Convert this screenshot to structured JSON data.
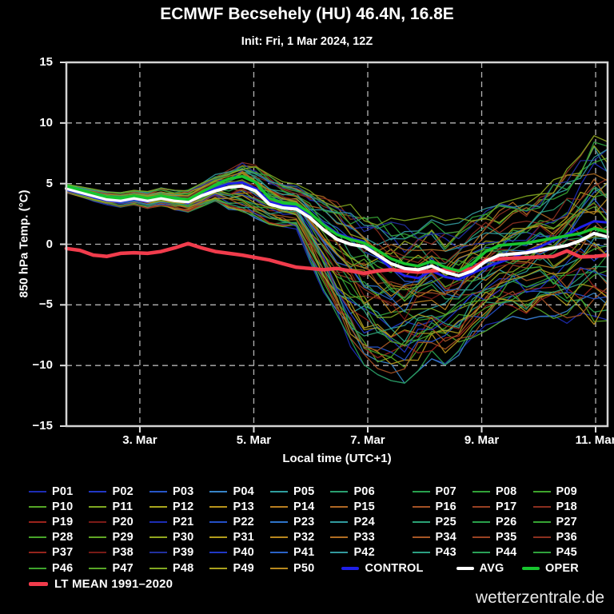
{
  "title": "ECMWF Becsehely (HU) 46.4N, 16.8E",
  "subtitle": "Init: Fri, 1 Mar 2024, 12Z",
  "watermark": "wetterzentrale.de",
  "colors": {
    "background": "#000000",
    "frame": "#d4d4d4",
    "grid": "#b4b4b4",
    "tick": "#e0e0e0",
    "text": "#ffffff"
  },
  "axes": {
    "y": {
      "label": "850 hPa Temp. (°C)",
      "ticks": [
        "15",
        "10",
        "5",
        "0",
        "−5",
        "−10",
        "−15"
      ],
      "values": [
        15,
        10,
        5,
        0,
        -5,
        -10,
        -15
      ],
      "gridline_values": [
        10,
        5,
        0,
        -5,
        -10
      ]
    },
    "x": {
      "label": "Local time (UTC+1)",
      "ticks": [
        "3. Mar",
        "5. Mar",
        "7. Mar",
        "9. Mar",
        "11. Mar"
      ]
    }
  },
  "chart_data": {
    "type": "line",
    "x_unit": "day of March 2024, local time (UTC+1)",
    "x_start": 1.71,
    "x_end": 11.21,
    "n_points": 41,
    "x_tick_days": [
      3,
      5,
      7,
      9,
      11
    ],
    "ylim": [
      -15,
      15
    ],
    "grid": true,
    "series": [
      {
        "name": "AVG",
        "color": "#ffffff",
        "values": [
          4.6,
          4.3,
          4.0,
          3.7,
          3.6,
          3.8,
          3.6,
          3.8,
          3.6,
          3.5,
          4.0,
          4.4,
          4.7,
          4.8,
          4.4,
          3.3,
          3.0,
          2.9,
          2.2,
          1.2,
          0.4,
          0.0,
          -0.2,
          -0.9,
          -1.6,
          -2.0,
          -2.1,
          -1.8,
          -2.3,
          -2.6,
          -2.2,
          -1.4,
          -0.9,
          -0.8,
          -0.7,
          -0.5,
          -0.3,
          -0.1,
          0.3,
          0.9,
          0.6
        ]
      },
      {
        "name": "OPER",
        "color": "#17c52f",
        "values": [
          4.8,
          4.5,
          4.2,
          3.9,
          3.8,
          4.0,
          3.8,
          4.0,
          3.8,
          3.7,
          4.3,
          4.9,
          5.4,
          5.6,
          5.1,
          3.8,
          3.4,
          3.3,
          2.6,
          1.6,
          0.8,
          0.4,
          0.1,
          -0.5,
          -1.2,
          -1.6,
          -1.8,
          -1.4,
          -1.9,
          -2.2,
          -1.6,
          -0.6,
          -0.1,
          0.0,
          0.1,
          0.3,
          0.5,
          0.7,
          0.9,
          1.3,
          1.0
        ]
      },
      {
        "name": "CONTROL",
        "color": "#1f1fe8",
        "values": [
          4.5,
          4.2,
          3.9,
          3.6,
          3.5,
          3.7,
          3.5,
          3.9,
          3.7,
          3.4,
          4.1,
          4.6,
          5.0,
          5.1,
          4.6,
          3.5,
          3.2,
          3.1,
          2.5,
          1.7,
          0.9,
          0.5,
          0.2,
          -1.0,
          -2.0,
          -2.6,
          -2.8,
          -2.2,
          -2.7,
          -2.9,
          -2.4,
          -1.9,
          -1.5,
          -1.1,
          -0.6,
          -0.2,
          0.3,
          0.8,
          1.4,
          1.9,
          1.8
        ]
      },
      {
        "name": "LT MEAN 1991–2020",
        "color": "#f13c4c",
        "values": [
          -0.35,
          -0.5,
          -0.9,
          -1.0,
          -0.75,
          -0.7,
          -0.75,
          -0.6,
          -0.3,
          0.05,
          -0.3,
          -0.6,
          -0.75,
          -0.9,
          -1.1,
          -1.3,
          -1.6,
          -1.9,
          -2.0,
          -2.1,
          -2.0,
          -2.2,
          -2.4,
          -2.2,
          -2.1,
          -2.2,
          -2.3,
          -2.2,
          -2.1,
          -2.2,
          -2.0,
          -1.3,
          -1.2,
          -1.15,
          -1.1,
          -1.05,
          -1.0,
          -0.55,
          -1.05,
          -1.0,
          -0.9
        ]
      }
    ],
    "ensemble": {
      "count": 50,
      "labels": [
        "P01",
        "P02",
        "P03",
        "P04",
        "P05",
        "P06",
        "P07",
        "P08",
        "P09",
        "P10",
        "P11",
        "P12",
        "P13",
        "P14",
        "P15",
        "P16",
        "P17",
        "P18",
        "P19",
        "P20",
        "P21",
        "P22",
        "P23",
        "P24",
        "P25",
        "P26",
        "P27",
        "P28",
        "P29",
        "P30",
        "P31",
        "P32",
        "P33",
        "P34",
        "P35",
        "P36",
        "P37",
        "P38",
        "P39",
        "P40",
        "P41",
        "P42",
        "P43",
        "P44",
        "P45",
        "P46",
        "P47",
        "P48",
        "P49",
        "P50"
      ],
      "colors": [
        "#1d2db4",
        "#2138c6",
        "#2756c8",
        "#3884c8",
        "#2f9f9f",
        "#2aa070",
        "#28a14e",
        "#31a338",
        "#3ea42c",
        "#55a626",
        "#7fa821",
        "#a8a61d",
        "#b8941b",
        "#b87e20",
        "#af6724",
        "#a45225",
        "#984023",
        "#8a2e1f",
        "#9c231c",
        "#7c1b17",
        "#1d2db4",
        "#2450c7",
        "#2f74c9",
        "#319b9e",
        "#2ba275",
        "#29a14b",
        "#36a433",
        "#47a52a",
        "#61a725",
        "#92a71f",
        "#b29d1c",
        "#b8861e",
        "#b16e22",
        "#a75725",
        "#9a4323",
        "#8c301f",
        "#95241c",
        "#781a16",
        "#22309f",
        "#2138c6",
        "#2b63c8",
        "#339a9e",
        "#2ca083",
        "#2aa158",
        "#2fa23c",
        "#3ea42c",
        "#58a626",
        "#82a821",
        "#aaa11d",
        "#b8891e"
      ],
      "envelope_min": [
        4.2,
        3.9,
        3.5,
        3.2,
        3.0,
        3.2,
        2.9,
        3.1,
        2.8,
        2.6,
        3.0,
        3.4,
        2.8,
        2.4,
        2.0,
        1.6,
        1.4,
        1.2,
        -1.5,
        -4.0,
        -6.5,
        -8.5,
        -10.0,
        -10.8,
        -11.3,
        -11.5,
        -10.5,
        -9.5,
        -10.0,
        -9.2,
        -8.0,
        -7.2,
        -6.5,
        -6.0,
        -6.5,
        -6.0,
        -6.5,
        -7.0,
        -6.5,
        -7.0,
        -6.8
      ],
      "envelope_max": [
        5.0,
        4.8,
        4.6,
        4.4,
        4.3,
        4.5,
        4.4,
        4.7,
        4.5,
        4.6,
        5.2,
        5.8,
        6.3,
        7.0,
        6.6,
        5.8,
        5.2,
        5.0,
        4.6,
        4.2,
        3.8,
        3.4,
        3.0,
        2.6,
        2.2,
        2.0,
        2.2,
        2.4,
        2.0,
        2.2,
        2.6,
        3.0,
        3.4,
        3.8,
        4.2,
        4.8,
        5.5,
        6.4,
        7.4,
        9.0,
        8.5
      ]
    }
  },
  "legend": {
    "control_label": "CONTROL",
    "avg_label": "AVG",
    "oper_label": "OPER",
    "lt_mean_label": "LT MEAN 1991–2020"
  }
}
